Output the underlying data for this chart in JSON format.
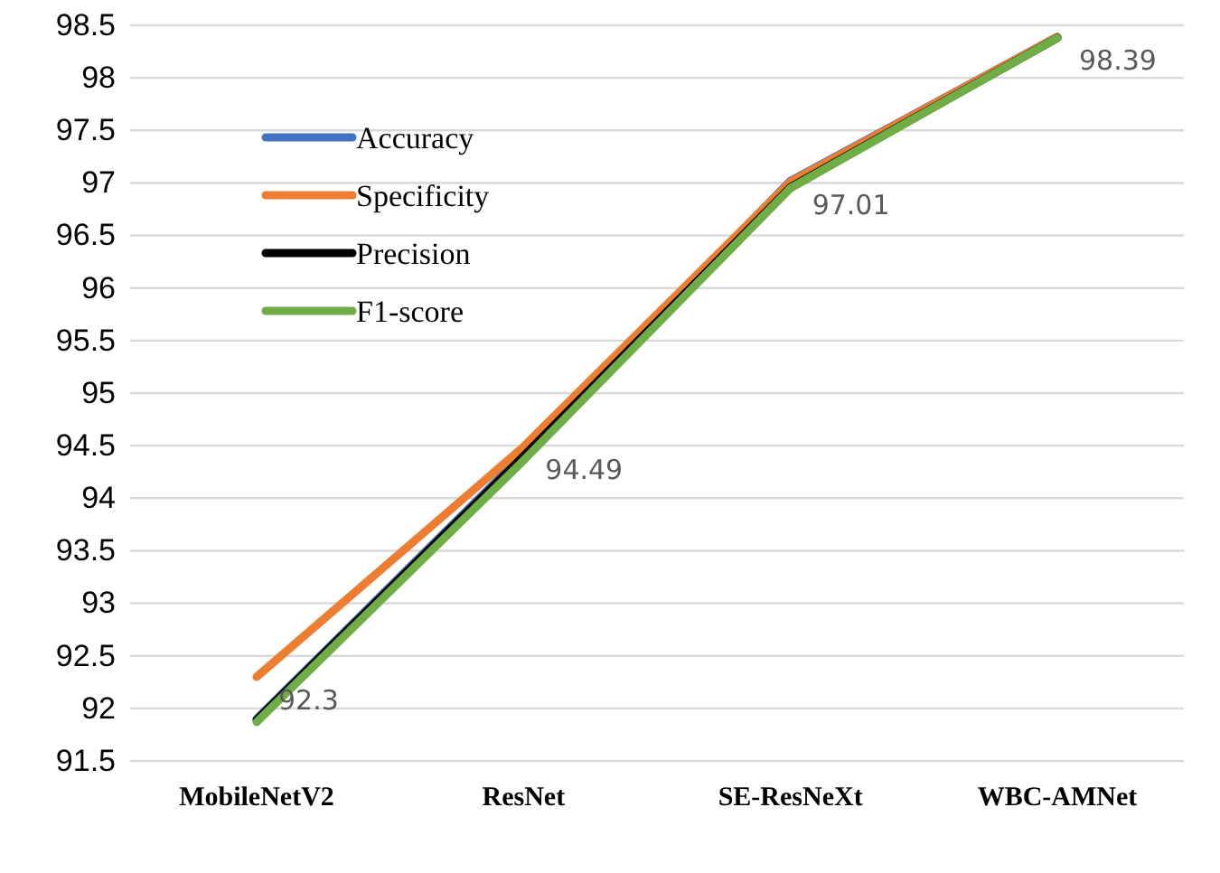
{
  "chart_data": {
    "type": "line",
    "categories": [
      "MobileNetV2",
      "ResNet",
      "SE-ResNeXt",
      "WBC-AMNet"
    ],
    "ylim": [
      91.5,
      98.5
    ],
    "yticks": [
      91.5,
      92,
      92.5,
      93,
      93.5,
      94,
      94.5,
      95,
      95.5,
      96,
      96.5,
      97,
      97.5,
      98,
      98.5
    ],
    "grid": "y",
    "legend": "top left",
    "marker": "none",
    "line_style": "solid",
    "series": [
      {
        "name": "Accuracy",
        "color": "#4472c4",
        "values": [
          91.9,
          94.42,
          97.02,
          98.39
        ]
      },
      {
        "name": "Specificity",
        "color": "#ed7d31",
        "values": [
          92.3,
          94.49,
          97.01,
          98.39
        ],
        "value_labels": [
          "92.3",
          "94.49",
          "97.01",
          "98.39"
        ]
      },
      {
        "name": "Precision",
        "color": "#000000",
        "values": [
          91.89,
          94.4,
          96.96,
          98.38
        ]
      },
      {
        "name": "F1-score",
        "color": "#70ad47",
        "values": [
          91.87,
          94.36,
          96.95,
          98.38
        ]
      }
    ]
  }
}
